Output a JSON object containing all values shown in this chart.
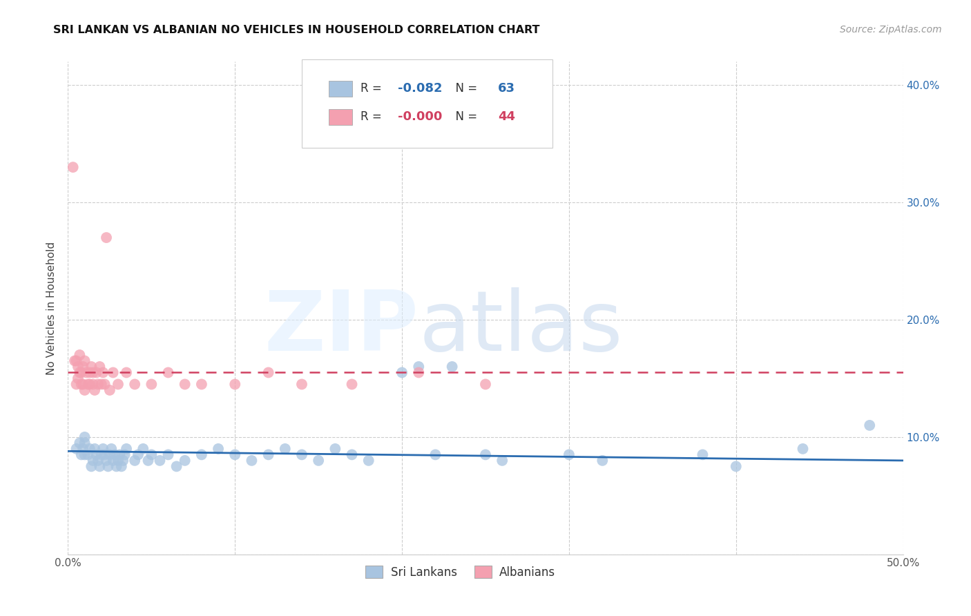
{
  "title": "SRI LANKAN VS ALBANIAN NO VEHICLES IN HOUSEHOLD CORRELATION CHART",
  "source": "Source: ZipAtlas.com",
  "ylabel": "No Vehicles in Household",
  "xlim": [
    0.0,
    0.5
  ],
  "ylim": [
    0.0,
    0.42
  ],
  "yticks": [
    0.0,
    0.1,
    0.2,
    0.3,
    0.4
  ],
  "right_ytick_labels": [
    "",
    "10.0%",
    "20.0%",
    "30.0%",
    "40.0%"
  ],
  "xticks": [
    0.0,
    0.1,
    0.2,
    0.3,
    0.4,
    0.5
  ],
  "xtick_labels": [
    "0.0%",
    "",
    "",
    "",
    "",
    "50.0%"
  ],
  "sri_lankan_color": "#a8c4e0",
  "albanian_color": "#f4a0b0",
  "sri_lankan_line_color": "#2b6cb0",
  "albanian_line_color": "#d04060",
  "legend_r_sri": "-0.082",
  "legend_n_sri": "63",
  "legend_r_alb": "-0.000",
  "legend_n_alb": "44",
  "grid_color": "#cccccc",
  "background_color": "#ffffff",
  "sri_lankans_x": [
    0.005,
    0.007,
    0.008,
    0.009,
    0.01,
    0.01,
    0.01,
    0.012,
    0.013,
    0.014,
    0.015,
    0.016,
    0.017,
    0.018,
    0.019,
    0.02,
    0.021,
    0.022,
    0.023,
    0.024,
    0.025,
    0.026,
    0.027,
    0.028,
    0.029,
    0.03,
    0.031,
    0.032,
    0.033,
    0.034,
    0.035,
    0.04,
    0.042,
    0.045,
    0.048,
    0.05,
    0.055,
    0.06,
    0.065,
    0.07,
    0.08,
    0.09,
    0.1,
    0.11,
    0.12,
    0.13,
    0.14,
    0.15,
    0.16,
    0.17,
    0.18,
    0.2,
    0.21,
    0.22,
    0.23,
    0.25,
    0.26,
    0.3,
    0.32,
    0.38,
    0.4,
    0.44,
    0.48
  ],
  "sri_lankans_y": [
    0.09,
    0.095,
    0.085,
    0.09,
    0.1,
    0.095,
    0.085,
    0.085,
    0.09,
    0.075,
    0.08,
    0.09,
    0.085,
    0.08,
    0.075,
    0.085,
    0.09,
    0.085,
    0.08,
    0.075,
    0.085,
    0.09,
    0.08,
    0.085,
    0.075,
    0.08,
    0.085,
    0.075,
    0.08,
    0.085,
    0.09,
    0.08,
    0.085,
    0.09,
    0.08,
    0.085,
    0.08,
    0.085,
    0.075,
    0.08,
    0.085,
    0.09,
    0.085,
    0.08,
    0.085,
    0.09,
    0.085,
    0.08,
    0.09,
    0.085,
    0.08,
    0.155,
    0.16,
    0.085,
    0.16,
    0.085,
    0.08,
    0.085,
    0.08,
    0.085,
    0.075,
    0.09,
    0.11
  ],
  "albanians_x": [
    0.003,
    0.004,
    0.005,
    0.005,
    0.006,
    0.006,
    0.007,
    0.007,
    0.008,
    0.008,
    0.009,
    0.009,
    0.01,
    0.01,
    0.011,
    0.012,
    0.013,
    0.013,
    0.014,
    0.015,
    0.015,
    0.016,
    0.017,
    0.018,
    0.019,
    0.02,
    0.021,
    0.022,
    0.023,
    0.025,
    0.027,
    0.03,
    0.035,
    0.04,
    0.05,
    0.06,
    0.07,
    0.08,
    0.1,
    0.12,
    0.14,
    0.17,
    0.21,
    0.25
  ],
  "albanians_y": [
    0.33,
    0.165,
    0.165,
    0.145,
    0.16,
    0.15,
    0.17,
    0.155,
    0.155,
    0.145,
    0.16,
    0.145,
    0.165,
    0.14,
    0.155,
    0.145,
    0.155,
    0.145,
    0.16,
    0.145,
    0.155,
    0.14,
    0.155,
    0.145,
    0.16,
    0.145,
    0.155,
    0.145,
    0.27,
    0.14,
    0.155,
    0.145,
    0.155,
    0.145,
    0.145,
    0.155,
    0.145,
    0.145,
    0.145,
    0.155,
    0.145,
    0.145,
    0.155,
    0.145
  ],
  "sri_trend_x": [
    0.0,
    0.5
  ],
  "sri_trend_y": [
    0.088,
    0.08
  ],
  "alb_trend_x": [
    0.0,
    0.5
  ],
  "alb_trend_y": [
    0.155,
    0.155
  ]
}
